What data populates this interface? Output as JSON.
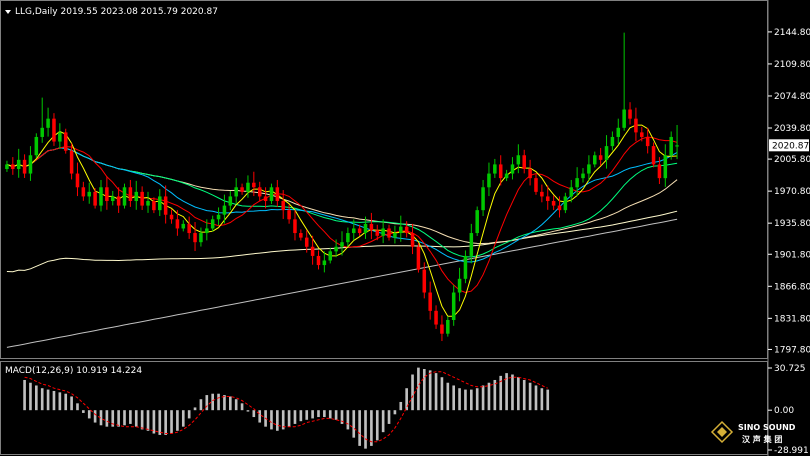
{
  "header": {
    "symbol_line": "LLG,Daily  2019.55 2023.08 2015.79 2020.87",
    "macd_line": "MACD(12,26,9) 10.919 14.224"
  },
  "price_axis": {
    "ticks": [
      "2144.80",
      "2109.80",
      "2074.80",
      "2039.80",
      "2005.80",
      "1970.80",
      "1935.80",
      "1901.80",
      "1866.80",
      "1831.80",
      "1797.80"
    ],
    "current_price": "2020.87"
  },
  "macd_axis": {
    "ticks": [
      "30.725",
      "0.00",
      "-28.991"
    ]
  },
  "logo": {
    "brand": "SINO SOUND",
    "sub": "汉 声 集 团"
  },
  "colors": {
    "bull": "#00c800",
    "bear": "#ff0000",
    "ma5": "#ffff00",
    "ma10": "#ff0000",
    "ma20": "#00bfff",
    "ma40": "#00ff7f",
    "ma60": "#f5deb3",
    "ma120": "#fffacd",
    "ma200": "#c0c0c0",
    "macd_signal": "#ff0000",
    "macd_hist": "#c0c0c0"
  },
  "chart_data": {
    "type": "candlestick",
    "title": "LLG,Daily",
    "ohlc_last": {
      "open": 2019.55,
      "high": 2023.08,
      "low": 2015.79,
      "close": 2020.87
    },
    "y_range": [
      1795,
      2160
    ],
    "closes": [
      2000,
      1995,
      2005,
      1990,
      2010,
      2030,
      2040,
      2050,
      2025,
      2035,
      2015,
      1990,
      1975,
      1965,
      1970,
      1955,
      1975,
      1960,
      1965,
      1955,
      1975,
      1960,
      1970,
      1955,
      1960,
      1950,
      1965,
      1945,
      1940,
      1930,
      1935,
      1925,
      1915,
      1925,
      1930,
      1940,
      1945,
      1955,
      1965,
      1975,
      1970,
      1980,
      1975,
      1965,
      1960,
      1975,
      1960,
      1950,
      1940,
      1925,
      1920,
      1910,
      1900,
      1890,
      1895,
      1905,
      1910,
      1915,
      1925,
      1930,
      1925,
      1935,
      1928,
      1922,
      1930,
      1920,
      1925,
      1932,
      1925,
      1910,
      1885,
      1860,
      1840,
      1825,
      1815,
      1830,
      1860,
      1875,
      1900,
      1925,
      1950,
      1975,
      1990,
      2000,
      1985,
      1990,
      2000,
      2010,
      1995,
      1985,
      1970,
      1965,
      1960,
      1955,
      1950,
      1965,
      1975,
      1985,
      1990,
      2000,
      2010,
      2005,
      2020,
      2030,
      2040,
      2060,
      2050,
      2035,
      2030,
      2020,
      2000,
      1985,
      2010,
      2030,
      2021
    ],
    "macd_range": [
      -28.991,
      30.725
    ],
    "macd_hist_start": 3,
    "macd_hist": [
      22,
      20,
      18,
      16,
      15,
      14,
      13,
      12,
      10,
      5,
      -2,
      -6,
      -9,
      -11,
      -12,
      -12,
      -12,
      -11,
      -10,
      -12,
      -14,
      -15,
      -17,
      -18,
      -18,
      -17,
      -15,
      -12,
      -6,
      2,
      8,
      11,
      12,
      12,
      11,
      10,
      8,
      5,
      -1,
      -5,
      -9,
      -12,
      -14,
      -15,
      -14,
      -12,
      -10,
      -8,
      -7,
      -6,
      -5,
      -5,
      -6,
      -7,
      -10,
      -14,
      -20,
      -26,
      -28,
      -26,
      -22,
      -16,
      -10,
      -3,
      6,
      16,
      26,
      31,
      30,
      29,
      27,
      24,
      20,
      18,
      16,
      15,
      15,
      16,
      18,
      20,
      22,
      25,
      27,
      26,
      24,
      22,
      20,
      18,
      16,
      15
    ],
    "macd_signal": [
      24,
      23,
      21,
      19,
      18,
      16,
      15,
      14,
      12,
      9,
      5,
      1,
      -3,
      -6,
      -8,
      -10,
      -11,
      -12,
      -12,
      -12,
      -13,
      -14,
      -15,
      -16,
      -17,
      -17,
      -16,
      -14,
      -11,
      -7,
      -2,
      3,
      7,
      9,
      10,
      10,
      9,
      7,
      4,
      1,
      -3,
      -6,
      -9,
      -11,
      -12,
      -12,
      -12,
      -11,
      -9,
      -8,
      -7,
      -6,
      -6,
      -7,
      -8,
      -10,
      -13,
      -17,
      -21,
      -23,
      -23,
      -21,
      -18,
      -13,
      -6,
      2,
      10,
      18,
      24,
      27,
      28,
      28,
      26,
      24,
      22,
      20,
      18,
      17,
      17,
      18,
      19,
      21,
      23,
      24,
      24,
      23,
      22,
      20,
      18,
      16
    ]
  }
}
